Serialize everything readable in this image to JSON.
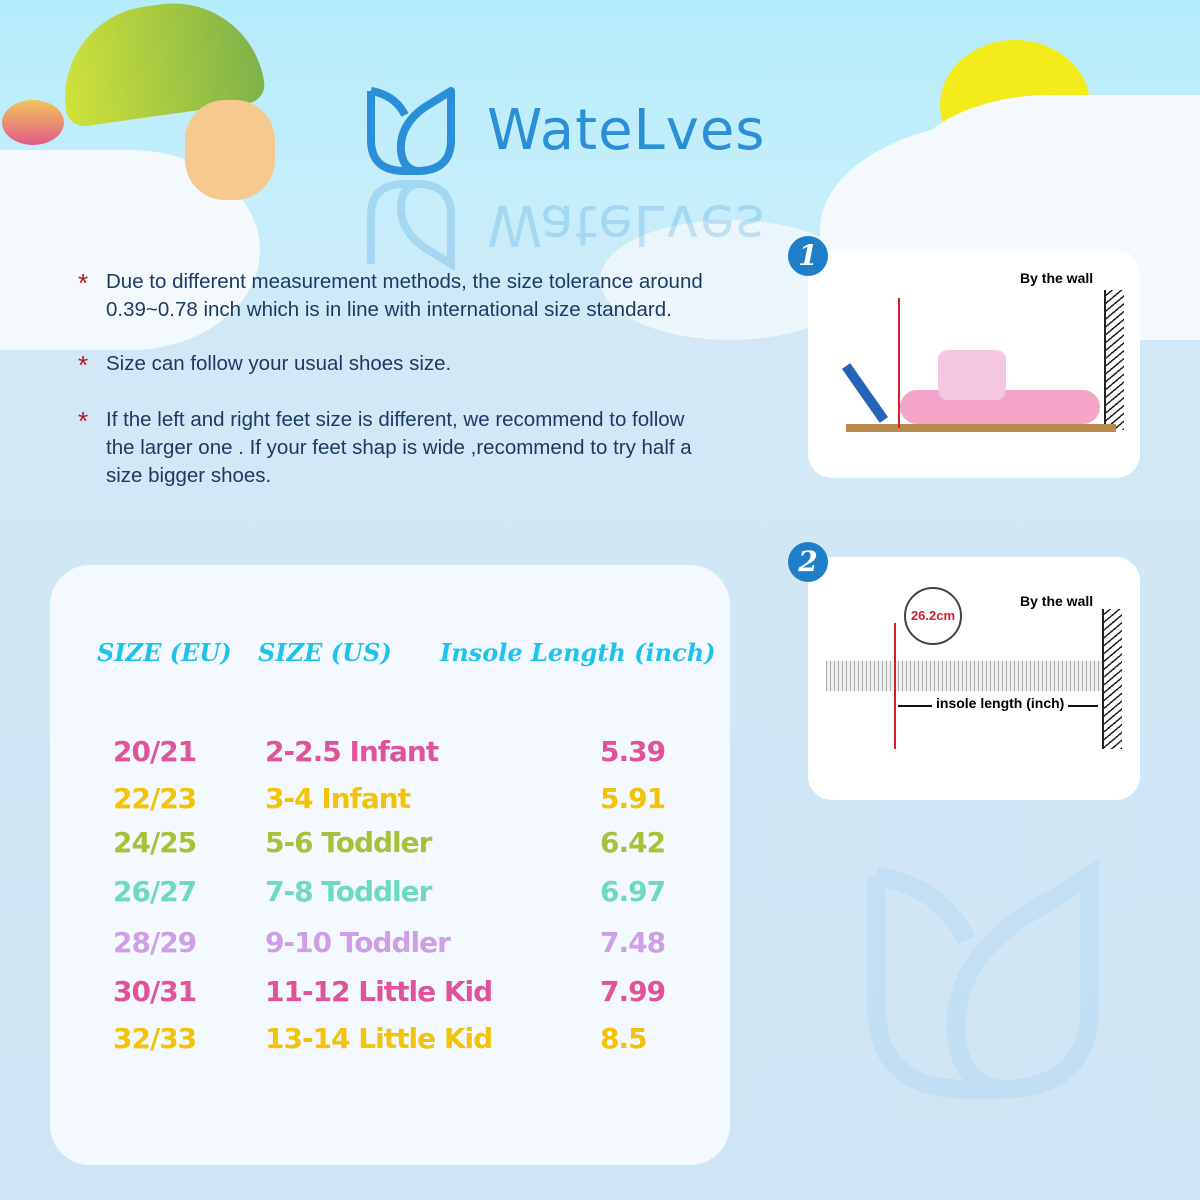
{
  "brand": {
    "name": "WateLves",
    "color": "#2a8fd6"
  },
  "notes": [
    "Due to different measurement methods,  the size tolerance around  0.39~0.78 inch which is in line with international size standard.",
    "Size can follow your usual shoes size.",
    "If the left and right feet size is different,  we recommend to follow the larger one . If your feet shap is wide ,recommend to try half a size bigger shoes."
  ],
  "note_marker": "*",
  "table": {
    "headers": [
      "SIZE (EU)",
      "SIZE (US)",
      "Insole Length (inch)"
    ],
    "rows": [
      {
        "eu": "20/21",
        "us": "2-2.5 Infant",
        "inch": "5.39",
        "color": "#e0539a"
      },
      {
        "eu": "22/23",
        "us": "3-4 Infant",
        "inch": "5.91",
        "color": "#f3c20a"
      },
      {
        "eu": "24/25",
        "us": "5-6 Toddler",
        "inch": "6.42",
        "color": "#a9c13a"
      },
      {
        "eu": "26/27",
        "us": "7-8 Toddler",
        "inch": "6.97",
        "color": "#6fd9bf"
      },
      {
        "eu": "28/29",
        "us": "9-10 Toddler",
        "inch": "7.48",
        "color": "#cf9fe6"
      },
      {
        "eu": "30/31",
        "us": "11-12 Little Kid",
        "inch": "7.99",
        "color": "#e0539a"
      },
      {
        "eu": "32/33",
        "us": "13-14 Little Kid",
        "inch": "8.5",
        "color": "#f3c20a"
      }
    ]
  },
  "steps": [
    {
      "number": "1",
      "wall_label": "By the wall"
    },
    {
      "number": "2",
      "wall_label": "By the wall",
      "reading": "26.2cm",
      "measure_label": "insole length (inch)"
    }
  ]
}
